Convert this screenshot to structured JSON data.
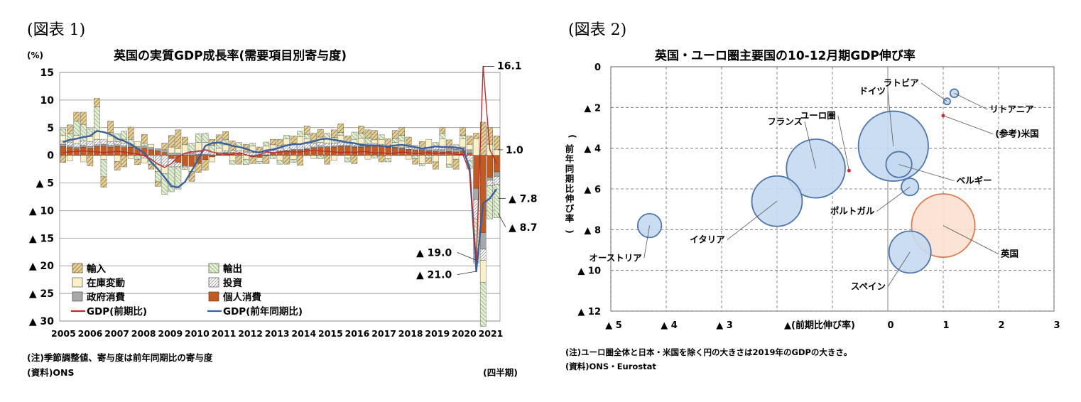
{
  "figure1": {
    "label": "(図表 1)",
    "title": "英国の実質GDP成長率(需要項目別寄与度)",
    "unit": "(%)",
    "note": "(注)季節調整値、寄与度は前年同期比の寄与度",
    "source": "(資料)ONS",
    "xunit": "(四半期)"
  },
  "figure2": {
    "label": "(図表 2)",
    "title": "英国・ユーロ圏主要国の10-12月期GDP伸び率",
    "note": "(注)ユーロ圏全体と日本・米国を除く円の大きさは2019年のGDPの大きさ。",
    "source": "(資料)ONS・Eurostat"
  },
  "chart_data": [
    {
      "type": "bar",
      "stacked": true,
      "ylim": [
        -30,
        15
      ],
      "yticks": [
        {
          "v": 15,
          "label": "15"
        },
        {
          "v": 10,
          "label": "10"
        },
        {
          "v": 5,
          "label": "5"
        },
        {
          "v": 0,
          "label": "0"
        },
        {
          "v": -5,
          "label": "▲ 5"
        },
        {
          "v": -10,
          "label": "▲ 10"
        },
        {
          "v": -15,
          "label": "▲ 15"
        },
        {
          "v": -20,
          "label": "▲ 20"
        },
        {
          "v": -25,
          "label": "▲ 25"
        },
        {
          "v": -30,
          "label": "▲ 30"
        }
      ],
      "years": [
        "2005",
        "2006",
        "2007",
        "2008",
        "2009",
        "2010",
        "2011",
        "2012",
        "2013",
        "2014",
        "2015",
        "2016",
        "2017",
        "2018",
        "2019",
        "2020",
        "2021"
      ],
      "legend": [
        {
          "key": "imports",
          "label": "輸入",
          "color": "#d8bd7a",
          "pattern": "hatch-brown"
        },
        {
          "key": "exports",
          "label": "輸出",
          "color": "#d5e8c0",
          "pattern": "hatch-green"
        },
        {
          "key": "inventory",
          "label": "在庫変動",
          "color": "#faf2c6",
          "pattern": "none"
        },
        {
          "key": "investment",
          "label": "投資",
          "color": "#ffffff",
          "pattern": "hatch-dark"
        },
        {
          "key": "government",
          "label": "政府消費",
          "color": "#a8a8a8",
          "pattern": "none"
        },
        {
          "key": "consumption",
          "label": "個人消費",
          "color": "#c55a1e",
          "pattern": "none"
        },
        {
          "key": "gdp_qoq",
          "label": "GDP(前期比)",
          "color": "#c0282d",
          "pattern": "line"
        },
        {
          "key": "gdp_yoy",
          "label": "GDP(前年同期比)",
          "color": "#3a5f9c",
          "pattern": "line"
        }
      ],
      "series": {
        "consumption": [
          1.6,
          1.4,
          1.2,
          1.5,
          1.3,
          1.6,
          1.7,
          1.5,
          1.6,
          1.4,
          1.5,
          1.2,
          1.3,
          1.0,
          0.8,
          0.5,
          -0.6,
          -1.3,
          -1.9,
          -2.0,
          -1.5,
          -0.8,
          -0.3,
          0.2,
          0.4,
          0.5,
          0.3,
          0.0,
          -0.3,
          -0.4,
          -0.1,
          0.3,
          0.6,
          0.8,
          0.9,
          0.9,
          1.1,
          1.3,
          1.4,
          1.4,
          1.5,
          1.6,
          1.6,
          1.5,
          1.5,
          1.6,
          1.7,
          1.6,
          1.4,
          1.3,
          1.2,
          1.0,
          0.9,
          0.9,
          0.8,
          0.7,
          0.6,
          0.7,
          0.6,
          0.8,
          0.4,
          -6.0,
          -14.0,
          -4.0,
          -3.0
        ],
        "government": [
          0.4,
          0.3,
          0.3,
          0.3,
          0.3,
          0.3,
          0.3,
          0.3,
          0.3,
          0.3,
          0.3,
          0.4,
          0.4,
          0.4,
          0.4,
          0.5,
          0.4,
          0.4,
          0.3,
          0.3,
          0.2,
          0.2,
          0.1,
          0.1,
          0.1,
          0.0,
          0.0,
          0.0,
          0.0,
          0.1,
          0.1,
          0.2,
          0.2,
          0.1,
          0.2,
          0.2,
          0.2,
          0.2,
          0.3,
          0.2,
          0.2,
          0.2,
          0.2,
          0.2,
          0.2,
          0.2,
          0.2,
          0.2,
          0.1,
          0.1,
          0.1,
          0.1,
          0.1,
          0.2,
          0.2,
          0.3,
          0.4,
          0.5,
          0.5,
          0.5,
          0.6,
          -2.0,
          -3.0,
          -0.5,
          -0.8
        ],
        "investment": [
          0.6,
          0.7,
          0.6,
          0.8,
          0.9,
          1.0,
          0.9,
          0.7,
          0.6,
          0.5,
          0.2,
          0.0,
          -0.5,
          -1.0,
          -1.6,
          -1.8,
          -1.5,
          -0.8,
          -0.2,
          0.4,
          0.7,
          0.8,
          0.5,
          0.2,
          0.3,
          0.4,
          0.5,
          0.6,
          0.5,
          0.4,
          0.6,
          0.8,
          0.9,
          1.0,
          1.1,
          1.0,
          0.8,
          0.7,
          0.6,
          0.6,
          0.5,
          0.6,
          0.5,
          0.4,
          0.4,
          0.3,
          0.3,
          0.2,
          0.1,
          0.1,
          0.2,
          0.3,
          0.3,
          0.2,
          0.3,
          0.5,
          0.6,
          0.4,
          0.3,
          0.2,
          -1.0,
          -3.5,
          -2.0,
          -1.0,
          -1.5
        ],
        "inventory": [
          1.0,
          -1.0,
          1.5,
          -1.2,
          0.9,
          1.4,
          -0.8,
          1.0,
          -1.1,
          0.7,
          -0.6,
          0.9,
          -0.9,
          0.6,
          -1.3,
          -1.5,
          1.1,
          0.8,
          1.6,
          -0.9,
          1.4,
          1.3,
          -0.9,
          0.8,
          1.1,
          -1.0,
          0.7,
          -0.8,
          1.2,
          -0.7,
          1.0,
          0.6,
          -0.9,
          1.1,
          -0.8,
          1.3,
          0.9,
          -0.6,
          1.0,
          0.7,
          -0.9,
          1.2,
          -0.5,
          0.8,
          1.0,
          -0.7,
          0.6,
          0.9,
          -0.6,
          0.8,
          1.1,
          -0.7,
          0.5,
          -1.5,
          1.6,
          -1.2,
          1.4,
          -1.6,
          -0.7,
          1.5,
          1.0,
          3.0,
          -4.0,
          2.0,
          1.0
        ],
        "exports": [
          1.2,
          1.5,
          2.6,
          3.0,
          1.4,
          4.5,
          -3.1,
          0.6,
          1.4,
          1.5,
          0.9,
          -0.7,
          0.5,
          -0.6,
          -1.9,
          -3.8,
          -4.5,
          -4.0,
          -0.5,
          1.5,
          1.6,
          1.7,
          1.2,
          1.1,
          0.9,
          -0.6,
          0.8,
          -0.9,
          0.5,
          -0.4,
          0.7,
          -0.6,
          -0.7,
          0.6,
          -0.5,
          1.0,
          0.8,
          0.5,
          -0.6,
          1.1,
          1.0,
          0.5,
          -0.7,
          1.3,
          0.9,
          1.0,
          -0.5,
          0.8,
          -0.6,
          0.7,
          1.0,
          0.6,
          -0.6,
          -0.4,
          -0.5,
          0.8,
          1.0,
          -0.6,
          0.5,
          0.6,
          -1.4,
          -8.0,
          -8.0,
          -6.0,
          -6.0
        ],
        "imports": [
          -1.3,
          1.6,
          1.6,
          2.2,
          -1.9,
          1.5,
          -1.9,
          2.1,
          -1.6,
          -2.1,
          2.2,
          -1.0,
          1.6,
          -0.9,
          -0.8,
          1.2,
          2.1,
          3.4,
          1.4,
          -1.8,
          -1.6,
          -1.9,
          1.1,
          1.3,
          1.5,
          1.7,
          -1.6,
          1.4,
          -1.2,
          1.0,
          -1.4,
          1.0,
          1.2,
          -1.6,
          1.3,
          -1.8,
          1.5,
          1.3,
          1.4,
          -1.6,
          1.4,
          1.6,
          1.2,
          -1.5,
          1.3,
          1.5,
          1.7,
          -1.2,
          1.4,
          1.5,
          1.4,
          1.3,
          -1.0,
          1.2,
          -1.0,
          -1.3,
          1.0,
          1.2,
          -1.8,
          1.4,
          1.5,
          1.0,
          6.0,
          3.0,
          2.5
        ],
        "gdp_yoy": [
          2.4,
          2.8,
          3.0,
          3.3,
          3.5,
          4.4,
          4.2,
          3.8,
          3.0,
          2.6,
          2.0,
          1.2,
          0.4,
          -1.2,
          -2.5,
          -4.0,
          -5.6,
          -5.8,
          -4.8,
          -2.8,
          -0.6,
          1.7,
          2.2,
          2.3,
          2.1,
          1.7,
          1.5,
          1.2,
          0.7,
          0.5,
          0.9,
          1.0,
          1.4,
          1.8,
          2.0,
          2.0,
          2.3,
          2.5,
          2.9,
          3.0,
          2.8,
          2.6,
          2.3,
          2.2,
          1.9,
          1.8,
          1.8,
          1.7,
          1.6,
          1.8,
          1.9,
          1.7,
          1.5,
          1.2,
          1.4,
          1.6,
          1.5,
          1.5,
          1.4,
          1.2,
          -2.2,
          -21.0,
          -8.7,
          -7.8,
          -6.1
        ],
        "gdp_qoq": [
          0.5,
          0.6,
          0.7,
          0.8,
          0.7,
          0.6,
          0.5,
          0.6,
          0.7,
          0.6,
          0.4,
          0.2,
          -0.1,
          -0.7,
          -1.6,
          -2.2,
          -1.5,
          -0.3,
          0.4,
          0.6,
          0.7,
          1.0,
          0.6,
          0.3,
          0.2,
          0.1,
          0.5,
          0.1,
          -0.2,
          0.1,
          0.6,
          0.5,
          0.6,
          0.7,
          0.6,
          0.6,
          0.8,
          0.9,
          0.8,
          0.7,
          0.6,
          0.5,
          0.6,
          0.5,
          0.7,
          0.6,
          0.4,
          0.5,
          0.3,
          0.4,
          0.6,
          0.5,
          0.3,
          0.4,
          0.5,
          0.3,
          0.4,
          0.5,
          0.1,
          0.2,
          -2.9,
          -19.0,
          16.1,
          1.0,
          -1.5
        ]
      },
      "annotations": [
        {
          "label": "16.1",
          "value": 16.1
        },
        {
          "label": "1.0",
          "value": 1.0
        },
        {
          "label": "▲ 7.8",
          "value": -7.8
        },
        {
          "label": "▲ 8.7",
          "value": -8.7
        },
        {
          "label": "▲ 19.0",
          "value": -19.0
        },
        {
          "label": "▲ 21.0",
          "value": -21.0
        }
      ]
    },
    {
      "type": "scatter",
      "bubble": true,
      "xlabel": "▲(前期比伸び率)",
      "ylabel": "(前年同期比伸び率)",
      "xlim": [
        -5,
        3
      ],
      "ylim": [
        0,
        12
      ],
      "y_inverted": true,
      "xticks": [
        {
          "v": -5,
          "label": "▲ 5"
        },
        {
          "v": -4,
          "label": "▲ 4"
        },
        {
          "v": -3,
          "label": "▲ 3"
        },
        {
          "v": -2,
          "label": "▲(前期比伸び率)"
        },
        {
          "v": 0,
          "label": "0"
        },
        {
          "v": 1,
          "label": "1"
        },
        {
          "v": 2,
          "label": "2"
        },
        {
          "v": 3,
          "label": "3"
        }
      ],
      "yticks": [
        {
          "v": 0,
          "label": "0"
        },
        {
          "v": 2,
          "label": "▲ 2"
        },
        {
          "v": 4,
          "label": "▲ 4"
        },
        {
          "v": 6,
          "label": "▲ 6"
        },
        {
          "v": 8,
          "label": "▲ 8"
        },
        {
          "v": 10,
          "label": "▲ 10"
        },
        {
          "v": 12,
          "label": "▲ 12"
        }
      ],
      "points": [
        {
          "name": "ドイツ",
          "x": 0.1,
          "y": 3.9,
          "size": 3.45,
          "color": "#c5d9ee",
          "labelpos": [
            0.0,
            1.2
          ]
        },
        {
          "name": "フランス",
          "x": -1.3,
          "y": 5.0,
          "size": 2.43,
          "color": "#c5d9ee",
          "labelpos": [
            -1.5,
            2.7
          ]
        },
        {
          "name": "イタリア",
          "x": -2.0,
          "y": 6.6,
          "size": 1.79,
          "color": "#c5d9ee",
          "labelpos": [
            -2.9,
            8.5
          ]
        },
        {
          "name": "スペイン",
          "x": 0.4,
          "y": 9.1,
          "size": 1.24,
          "color": "#c5d9ee",
          "labelpos": [
            0.0,
            10.8
          ]
        },
        {
          "name": "ベルギー",
          "x": 0.2,
          "y": 4.8,
          "size": 0.47,
          "color": "#c5d9ee",
          "labelpos": [
            1.2,
            5.6
          ]
        },
        {
          "name": "ポルトガル",
          "x": 0.4,
          "y": 5.9,
          "size": 0.21,
          "color": "#c5d9ee",
          "labelpos": [
            -0.2,
            7.1
          ]
        },
        {
          "name": "オーストリア",
          "x": -4.3,
          "y": 7.8,
          "size": 0.4,
          "color": "#c5d9ee",
          "labelpos": [
            -4.4,
            9.4
          ]
        },
        {
          "name": "ラトビア",
          "x": 1.07,
          "y": 1.7,
          "size": 0.03,
          "color": "#c5d9ee",
          "labelpos": [
            0.6,
            0.8
          ]
        },
        {
          "name": "リトアニア",
          "x": 1.2,
          "y": 1.3,
          "size": 0.05,
          "color": "#c5d9ee",
          "labelpos": [
            1.8,
            2.1
          ]
        },
        {
          "name": "英国",
          "x": 1.0,
          "y": 7.8,
          "size": 2.83,
          "color": "#fbe1d2",
          "labelpos": [
            2.0,
            9.2
          ]
        },
        {
          "name": "ユーロ圏",
          "x": -0.7,
          "y": 5.1,
          "size": 0,
          "color": "#d62b2b",
          "labelpos": [
            -0.9,
            2.4
          ]
        },
        {
          "name": "(参考)米国",
          "x": 1.0,
          "y": 2.4,
          "size": 0,
          "color": "#d62b2b",
          "labelpos": [
            1.9,
            3.3
          ]
        }
      ]
    }
  ]
}
